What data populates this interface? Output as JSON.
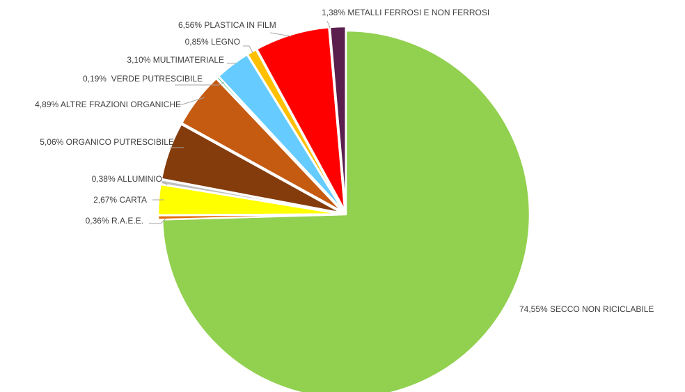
{
  "chart_data": {
    "type": "pie",
    "title": "",
    "start_angle_deg": 0,
    "direction": "clockwise",
    "legend": "none",
    "slices": [
      {
        "label": "SECCO NON RICICLABILE",
        "value": 74.55,
        "display": "74,55% SECCO NON RICICLABILE",
        "color": "#92D050"
      },
      {
        "label": "R.A.E.E.",
        "value": 0.36,
        "display": "0,36% R.A.E.E.",
        "color": "#E46C0A"
      },
      {
        "label": "CARTA",
        "value": 2.67,
        "display": "2,67% CARTA",
        "color": "#FFFF00"
      },
      {
        "label": "ALLUMINIO",
        "value": 0.38,
        "display": "0,38% ALLUMINIO",
        "color": "#BFBFBF"
      },
      {
        "label": "ORGANICO PUTRESCIBILE",
        "value": 5.06,
        "display": "5,06% ORGANICO PUTRESCIBILE",
        "color": "#843C0C"
      },
      {
        "label": "ALTRE FRAZIONI ORGANICHE",
        "value": 4.89,
        "display": "4,89% ALTRE FRAZIONI ORGANICHE",
        "color": "#C55A11"
      },
      {
        "label": "VERDE PUTRESCIBILE",
        "value": 0.19,
        "display": "0,19%  VERDE PUTRESCIBILE",
        "color": "#00B050"
      },
      {
        "label": "MULTIMATERIALE",
        "value": 3.1,
        "display": "3,10% MULTIMATERIALE",
        "color": "#66CCFF"
      },
      {
        "label": "LEGNO",
        "value": 0.85,
        "display": "0,85% LEGNO",
        "color": "#FFC000"
      },
      {
        "label": "PLASTICA IN FILM",
        "value": 6.56,
        "display": "6,56% PLASTICA IN FILM",
        "color": "#FF0000"
      },
      {
        "label": "METALLI FERROSI E NON FERROSI",
        "value": 1.38,
        "display": "1,38% METALLI FERROSI E NON FERROSI",
        "color": "#5B1F4E"
      }
    ]
  }
}
